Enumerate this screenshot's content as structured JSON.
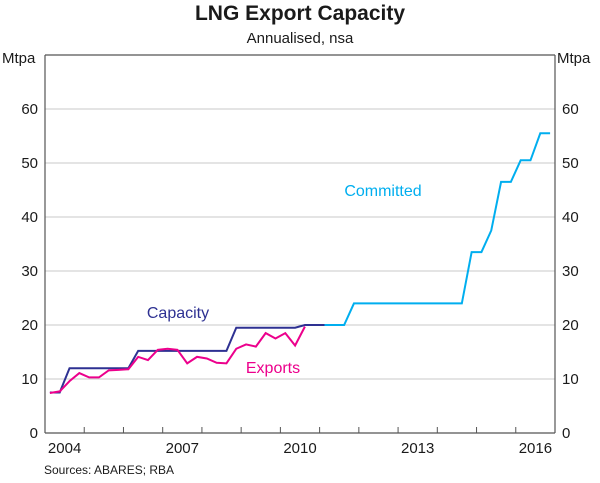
{
  "chart_data": {
    "type": "line",
    "title": "LNG Export Capacity",
    "subtitle": "Annualised, nsa",
    "ylabel_left": "Mtpa",
    "ylabel_right": "Mtpa",
    "source": "Sources: ABARES; RBA",
    "xlim": [
      2004,
      2017
    ],
    "ylim": [
      0,
      70
    ],
    "yticks": [
      0,
      10,
      20,
      30,
      40,
      50,
      60
    ],
    "xtick_labels": [
      "2004",
      "2007",
      "2010",
      "2013",
      "2016"
    ],
    "xtick_years": [
      2004,
      2007,
      2010,
      2013,
      2016
    ],
    "frequency": "quarterly",
    "grid": true,
    "series": [
      {
        "name": "Capacity",
        "color": "#2e3192",
        "start": "2004 Q1",
        "values": [
          7.5,
          7.5,
          12,
          12,
          12,
          12,
          12,
          12,
          12,
          15.2,
          15.2,
          15.2,
          15.2,
          15.2,
          15.2,
          15.2,
          15.2,
          15.2,
          15.2,
          19.5,
          19.5,
          19.5,
          19.5,
          19.5,
          19.5,
          19.5,
          20,
          20,
          20
        ]
      },
      {
        "name": "Exports",
        "color": "#ec008c",
        "start": "2004 Q1",
        "values": [
          7.4,
          7.7,
          9.6,
          11.1,
          10.3,
          10.3,
          11.6,
          11.7,
          11.8,
          14.1,
          13.5,
          15.4,
          15.6,
          15.4,
          12.9,
          14.1,
          13.8,
          13.0,
          12.9,
          15.6,
          16.4,
          16.0,
          18.5,
          17.5,
          18.5,
          16.2,
          19.7
        ]
      },
      {
        "name": "Committed",
        "color": "#00aeef",
        "start": "2011 Q1",
        "values": [
          20,
          20,
          20,
          24,
          24,
          24,
          24,
          24,
          24,
          24,
          24,
          24,
          24,
          24,
          24,
          33.5,
          33.5,
          37.5,
          46.5,
          46.5,
          50.5,
          50.5,
          55.5,
          55.5
        ]
      }
    ]
  }
}
